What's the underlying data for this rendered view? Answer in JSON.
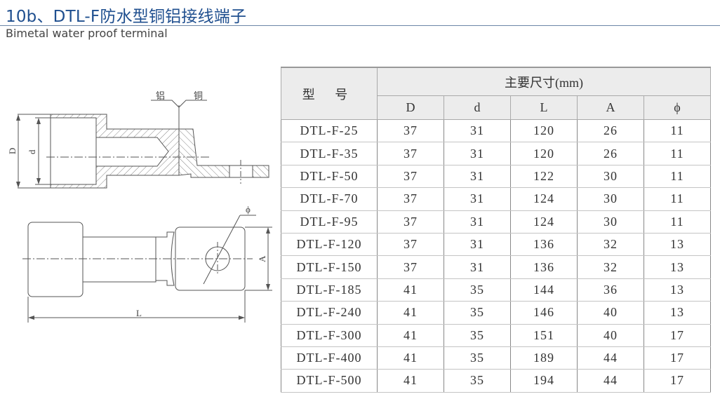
{
  "header": {
    "title": "10b、DTL-F防水型铜铝接线端子",
    "subtitle": "Bimetal water proof terminal"
  },
  "drawing": {
    "labels": {
      "aluminum": "铝",
      "copper": "铜",
      "D": "D",
      "d": "d",
      "phi": "ϕ",
      "A": "A",
      "L": "L"
    }
  },
  "table": {
    "model_header": "型 号",
    "group_header": "主要尺寸(mm)",
    "columns": [
      "D",
      "d",
      "L",
      "A",
      "ϕ"
    ],
    "rows": [
      {
        "model": "DTL-F-25",
        "values": [
          "37",
          "31",
          "120",
          "26",
          "11"
        ]
      },
      {
        "model": "DTL-F-35",
        "values": [
          "37",
          "31",
          "120",
          "26",
          "11"
        ]
      },
      {
        "model": "DTL-F-50",
        "values": [
          "37",
          "31",
          "122",
          "30",
          "11"
        ]
      },
      {
        "model": "DTL-F-70",
        "values": [
          "37",
          "31",
          "124",
          "30",
          "11"
        ]
      },
      {
        "model": "DTL-F-95",
        "values": [
          "37",
          "31",
          "124",
          "30",
          "11"
        ]
      },
      {
        "model": "DTL-F-120",
        "values": [
          "37",
          "31",
          "136",
          "32",
          "13"
        ]
      },
      {
        "model": "DTL-F-150",
        "values": [
          "37",
          "31",
          "136",
          "32",
          "13"
        ]
      },
      {
        "model": "DTL-F-185",
        "values": [
          "41",
          "35",
          "144",
          "36",
          "13"
        ]
      },
      {
        "model": "DTL-F-240",
        "values": [
          "41",
          "35",
          "146",
          "40",
          "13"
        ]
      },
      {
        "model": "DTL-F-300",
        "values": [
          "41",
          "35",
          "151",
          "40",
          "17"
        ]
      },
      {
        "model": "DTL-F-400",
        "values": [
          "41",
          "35",
          "189",
          "44",
          "17"
        ]
      },
      {
        "model": "DTL-F-500",
        "values": [
          "41",
          "35",
          "194",
          "44",
          "17"
        ]
      }
    ]
  }
}
